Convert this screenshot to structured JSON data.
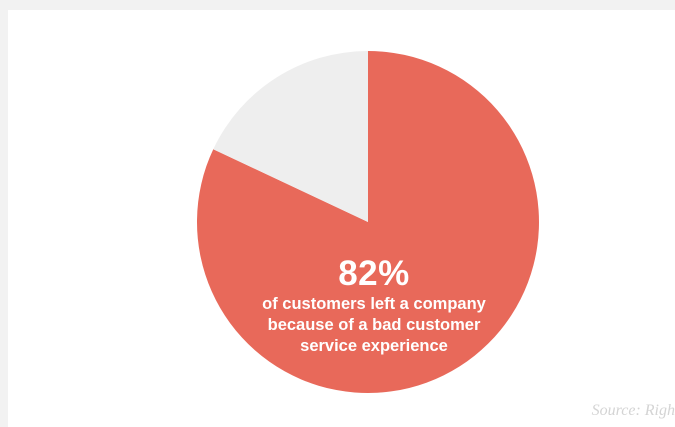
{
  "chart_data": {
    "type": "pie",
    "slices": [
      {
        "label": "82%",
        "value": 82,
        "color": "#e8695a"
      },
      {
        "label": "",
        "value": 18,
        "color": "#eeeeee"
      }
    ]
  },
  "center_text": {
    "value": "82%",
    "line1": "of customers left a company",
    "line2": "because of a bad customer",
    "line3": "service experience"
  },
  "source": "Source: Righ"
}
